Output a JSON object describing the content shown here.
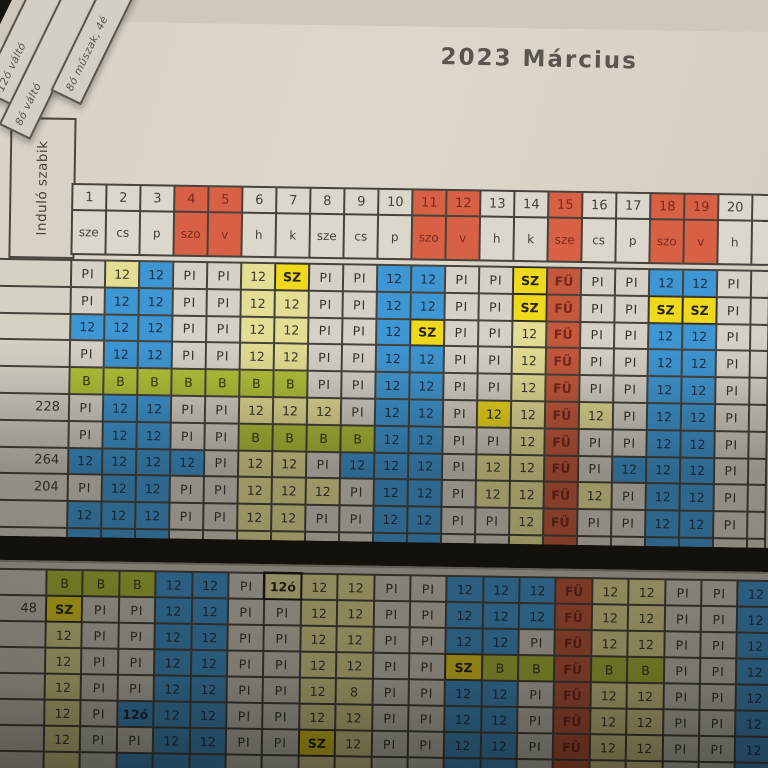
{
  "title": "2023 Március",
  "corner_tabs": [
    "12ó váltó",
    "8ó váltó",
    "8ó műszak, 4é"
  ],
  "left_header_label": "Induló szabik",
  "colors": {
    "paper": "#d8d2c6",
    "paper_bottom": "#ccc6ba",
    "grid_line": "#46433c",
    "header_red": "#d86045",
    "cell_bg": {
      "w": "#d5d1c6",
      "y": "#e4dd94",
      "b": "#3e96d2",
      "s": "#efd91d",
      "f": "#ce5a3d",
      "g": "#b2c139",
      "yo": "#eae3a2",
      "bo": "#3e96d2"
    },
    "cell_text": {
      "w": "#35332c",
      "y": "#3a372c",
      "b": "#1b3048",
      "s": "#24221a",
      "f": "#7f2318",
      "g": "#333a10",
      "yo": "#262417",
      "bo": "#16283a"
    },
    "header_red_text": "#7c2a1c"
  },
  "legend_meaning_note": "",
  "top_table": {
    "day_numbers": [
      "1",
      "2",
      "3",
      "4",
      "5",
      "6",
      "7",
      "8",
      "9",
      "10",
      "11",
      "12",
      "13",
      "14",
      "15",
      "16",
      "17",
      "18",
      "19",
      "20"
    ],
    "day_names": [
      "sze",
      "cs",
      "p",
      "szo",
      "v",
      "h",
      "k",
      "sze",
      "cs",
      "p",
      "szo",
      "v",
      "h",
      "k",
      "sze",
      "cs",
      "p",
      "szo",
      "v",
      "h"
    ],
    "red_days": [
      4,
      5,
      11,
      12,
      15,
      18,
      19
    ],
    "rows": [
      {
        "label": "",
        "cells": [
          "PI:w",
          "12:y",
          "12:b",
          "PI:w",
          "PI:w",
          "12:y",
          "SZ:s",
          "PI:w",
          "PI:w",
          "12:b",
          "12:b",
          "PI:w",
          "PI:w",
          "SZ:s",
          "FÜ:f",
          "PI:w",
          "PI:w",
          "12:b",
          "12:b",
          "PI:w"
        ]
      },
      {
        "label": "",
        "cells": [
          "PI:w",
          "12:b",
          "12:b",
          "PI:w",
          "PI:w",
          "12:y",
          "12:y",
          "PI:w",
          "PI:w",
          "12:b",
          "12:b",
          "PI:w",
          "PI:w",
          "SZ:s",
          "FÜ:f",
          "PI:w",
          "PI:w",
          "SZ:s",
          "SZ:s",
          "PI:w"
        ]
      },
      {
        "label": "",
        "cells": [
          "12:b",
          "12:b",
          "12:b",
          "PI:w",
          "PI:w",
          "12:y",
          "12:y",
          "PI:w",
          "PI:w",
          "12:b",
          "SZ:s",
          "PI:w",
          "PI:w",
          "12:y",
          "FÜ:f",
          "PI:w",
          "PI:w",
          "12:b",
          "12:b",
          "PI:w"
        ]
      },
      {
        "label": "",
        "cells": [
          "PI:w",
          "12:b",
          "12:b",
          "PI:w",
          "PI:w",
          "12:y",
          "12:y",
          "PI:w",
          "PI:w",
          "12:b",
          "12:b",
          "PI:w",
          "PI:w",
          "12:y",
          "FÜ:f",
          "PI:w",
          "PI:w",
          "12:b",
          "12:b",
          "PI:w"
        ]
      },
      {
        "label": "",
        "cells": [
          "B:g",
          "B:g",
          "B:g",
          "B:g",
          "B:g",
          "B:g",
          "B:g",
          "PI:w",
          "PI:w",
          "12:b",
          "12:b",
          "PI:w",
          "PI:w",
          "12:y",
          "FÜ:f",
          "PI:w",
          "PI:w",
          "12:b",
          "12:b",
          "PI:w"
        ]
      },
      {
        "label": "228",
        "cells": [
          "PI:w",
          "12:b",
          "12:b",
          "PI:w",
          "PI:w",
          "12:y",
          "12:y",
          "12:y",
          "PI:w",
          "12:b",
          "12:b",
          "PI:w",
          "12:s",
          "12:y",
          "FÜ:f",
          "12:y",
          "PI:w",
          "12:b",
          "12:b",
          "PI:w"
        ]
      },
      {
        "label": "",
        "cells": [
          "PI:w",
          "12:b",
          "12:b",
          "PI:w",
          "PI:w",
          "B:g",
          "B:g",
          "B:g",
          "B:g",
          "12:b",
          "12:b",
          "PI:w",
          "PI:w",
          "12:y",
          "FÜ:f",
          "PI:w",
          "PI:w",
          "12:b",
          "12:b",
          "PI:w"
        ]
      },
      {
        "label": "264",
        "cells": [
          "12:b",
          "12:b",
          "12:b",
          "12:b",
          "PI:w",
          "12:y",
          "12:y",
          "PI:w",
          "12:b",
          "12:b",
          "12:b",
          "PI:w",
          "12:y",
          "12:y",
          "FÜ:f",
          "PI:w",
          "12:b",
          "12:b",
          "12:b",
          "PI:w"
        ]
      },
      {
        "label": "204",
        "cells": [
          "PI:w",
          "12:b",
          "12:b",
          "PI:w",
          "PI:w",
          "12:y",
          "12:y",
          "12:y",
          "PI:w",
          "12:b",
          "12:b",
          "PI:w",
          "12:y",
          "12:y",
          "FÜ:f",
          "12:y",
          "PI:w",
          "12:b",
          "12:b",
          "PI:w"
        ]
      },
      {
        "label": "",
        "cells": [
          "12:b",
          "12:b",
          "12:b",
          "PI:w",
          "PI:w",
          "12:y",
          "12:y",
          "PI:w",
          "PI:w",
          "12:b",
          "12:b",
          "PI:w",
          "PI:w",
          "12:y",
          "FÜ:f",
          "PI:w",
          "PI:w",
          "12:b",
          "12:b",
          "PI:w"
        ]
      },
      {
        "label": "",
        "cells": [
          ":b",
          ":b",
          ":b",
          ":w",
          ":w",
          ":y",
          ":y",
          ":w",
          ":w",
          ":b",
          ":b",
          ":w",
          ":w",
          ":y",
          ":f",
          ":w",
          ":w",
          ":b",
          ":b",
          ":w"
        ]
      }
    ]
  },
  "bottom_table": {
    "rows": [
      {
        "label": "",
        "cells": [
          "B:g",
          "B:g",
          "B:g",
          "12:b",
          "12:b",
          "PI:w",
          "12ó:yo",
          "12:y",
          "12:y",
          "PI:w",
          "PI:w",
          "12:b",
          "12:b",
          "12:b",
          "FÜ:f",
          "12:y",
          "12:y",
          "PI:w",
          "PI:w",
          "12:b"
        ]
      },
      {
        "label": "48",
        "cells": [
          "SZ:s",
          "PI:w",
          "PI:w",
          "12:b",
          "12:b",
          "PI:w",
          "PI:w",
          "12:y",
          "12:y",
          "PI:w",
          "PI:w",
          "12:b",
          "12:b",
          "12:b",
          "FÜ:f",
          "12:y",
          "12:y",
          "PI:w",
          "PI:w",
          "12:b"
        ]
      },
      {
        "label": "",
        "cells": [
          "12:y",
          "PI:w",
          "PI:w",
          "12:b",
          "12:b",
          "PI:w",
          "PI:w",
          "12:y",
          "12:y",
          "PI:w",
          "PI:w",
          "12:b",
          "12:b",
          "PI:w",
          "FÜ:f",
          "12:y",
          "12:y",
          "PI:w",
          "PI:w",
          "12:b"
        ]
      },
      {
        "label": "",
        "cells": [
          "12:y",
          "PI:w",
          "PI:w",
          "12:b",
          "12:b",
          "PI:w",
          "PI:w",
          "12:y",
          "12:y",
          "PI:w",
          "PI:w",
          "SZ:s",
          "B:g",
          "B:g",
          "FÜ:f",
          "B:g",
          "B:g",
          "PI:w",
          "PI:w",
          "12:b"
        ]
      },
      {
        "label": "",
        "cells": [
          "12:y",
          "PI:w",
          "PI:w",
          "12:b",
          "12:b",
          "PI:w",
          "PI:w",
          "12:y",
          "8:y",
          "PI:w",
          "PI:w",
          "12:b",
          "12:b",
          "PI:w",
          "FÜ:f",
          "12:y",
          "12:y",
          "PI:w",
          "PI:w",
          "12:b"
        ]
      },
      {
        "label": "",
        "cells": [
          "12:y",
          "PI:w",
          "12ó:bo",
          "12:b",
          "12:b",
          "PI:w",
          "PI:w",
          "12:y",
          "12:y",
          "PI:w",
          "PI:w",
          "12:b",
          "12:b",
          "PI:w",
          "FÜ:f",
          "12:y",
          "12:y",
          "PI:w",
          "PI:w",
          "12:b"
        ]
      },
      {
        "label": "",
        "cells": [
          "12:y",
          "PI:w",
          "PI:w",
          "12:b",
          "12:b",
          "PI:w",
          "PI:w",
          "SZ:s",
          "12:y",
          "PI:w",
          "PI:w",
          "12:b",
          "12:b",
          "PI:w",
          "FÜ:f",
          "12:y",
          "12:y",
          "PI:w",
          "PI:w",
          "12:b"
        ]
      },
      {
        "label": "",
        "cells": [
          ":y",
          ":w",
          ":b",
          ":b",
          ":b",
          ":w",
          ":w",
          ":y",
          ":y",
          ":w",
          ":w",
          ":b",
          ":b",
          ":w",
          ":f",
          ":y",
          ":y",
          ":w",
          ":w",
          ":b"
        ]
      }
    ]
  }
}
